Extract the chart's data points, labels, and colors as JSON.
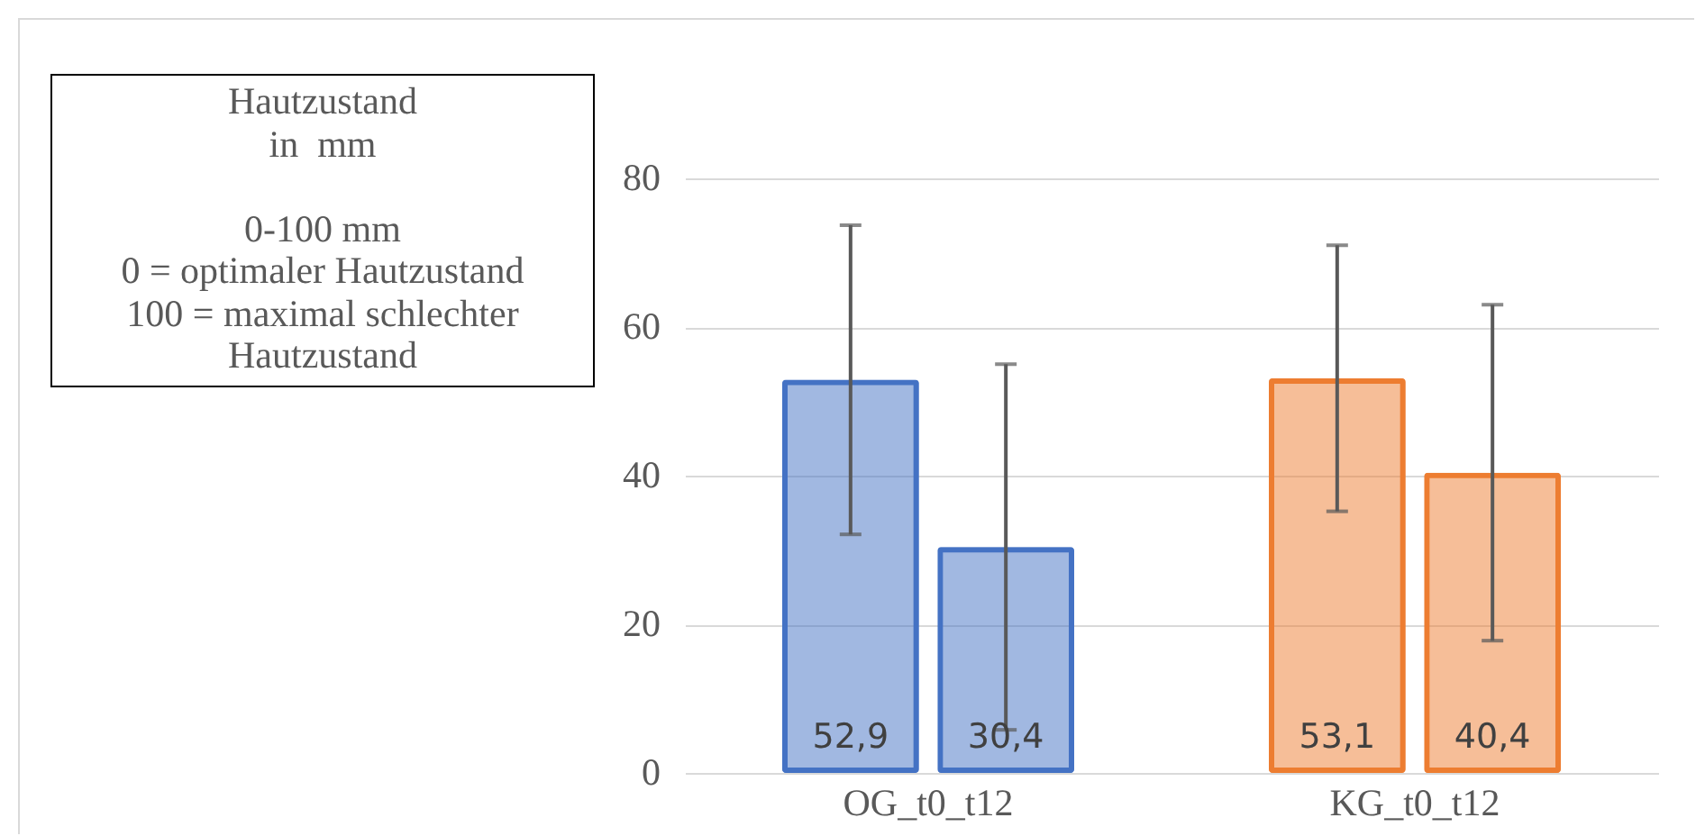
{
  "chart_data": {
    "type": "bar",
    "categories": [
      "OG_t0_t12",
      "KG_t0_t12"
    ],
    "series": [
      {
        "colors": [
          "#4472c4",
          "#ed7d31"
        ],
        "values": [
          52.9,
          53.1
        ],
        "value_labels": [
          "52,9",
          "53,1"
        ],
        "errors": [
          [
            32.1,
            73.7
          ],
          [
            35.2,
            71.0
          ]
        ]
      },
      {
        "colors": [
          "#4472c4",
          "#ed7d31"
        ],
        "values": [
          30.4,
          40.4
        ],
        "value_labels": [
          "30,4",
          "40,4"
        ],
        "errors": [
          [
            5.8,
            55.0
          ],
          [
            17.8,
            63.0
          ]
        ]
      }
    ],
    "ylim": [
      0,
      80
    ],
    "yticks": [
      0,
      20,
      40,
      60,
      80
    ],
    "grid": "y",
    "annotations": [
      "Hautzustand\nin  mm\n\n0-100 mm\n0 = optimaler Hautzustand\n100 = maximal schlechter\nHautzustand"
    ]
  }
}
